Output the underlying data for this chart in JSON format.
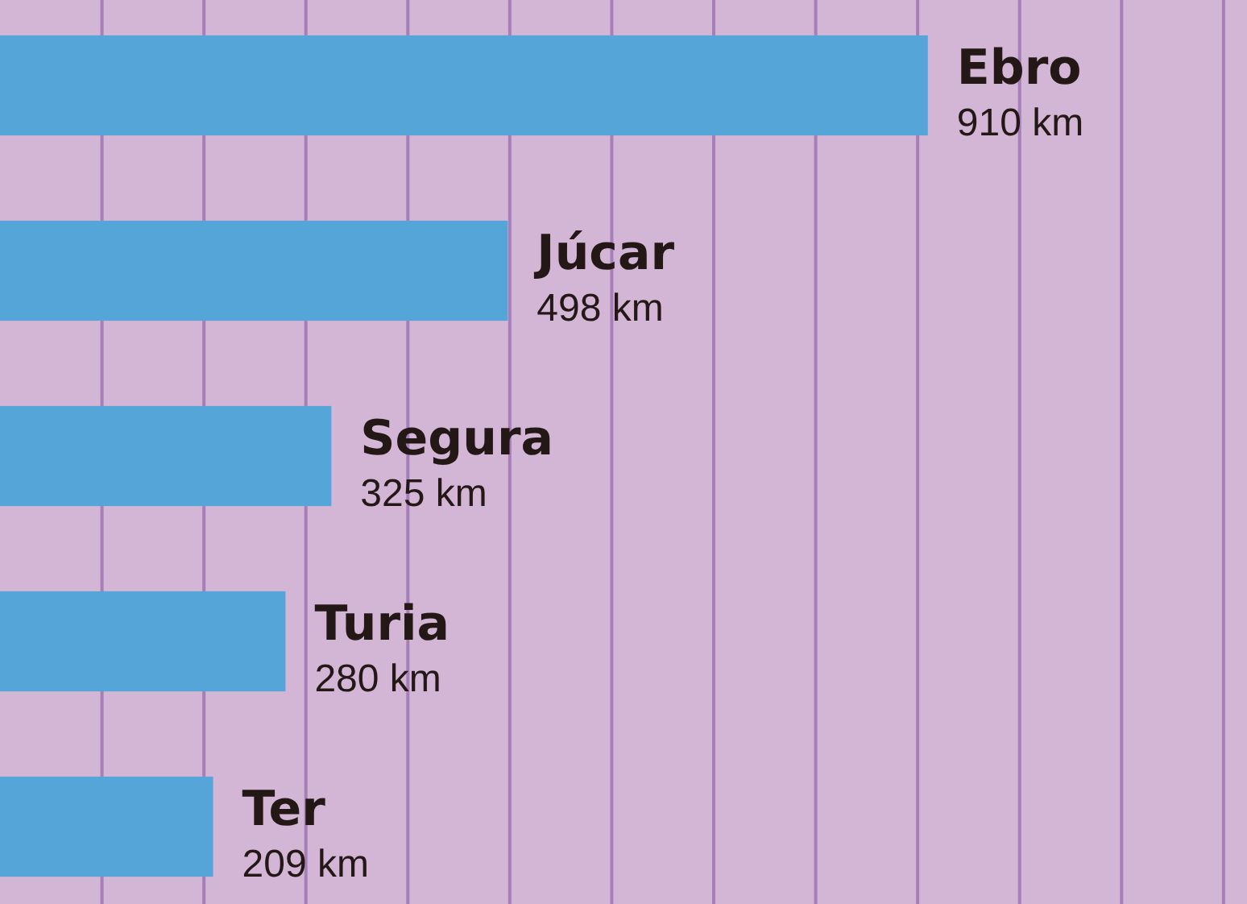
{
  "chart_data": {
    "type": "bar",
    "orientation": "horizontal",
    "categories": [
      "Ebro",
      "Júcar",
      "Segura",
      "Turia",
      "Ter"
    ],
    "values": [
      910,
      498,
      325,
      280,
      209
    ],
    "color": "#56a5d8",
    "value_labels": [
      "910 km",
      "498 km",
      "325 km",
      "280 km",
      "209 km"
    ],
    "xlim": [
      0,
      1223
    ],
    "xticks": [
      {
        "value": 100,
        "label": null
      },
      {
        "value": 200,
        "label": null
      },
      {
        "value": 300,
        "label": null
      },
      {
        "value": 400,
        "label": null
      },
      {
        "value": 500,
        "label": null
      },
      {
        "value": 600,
        "label": null
      },
      {
        "value": 700,
        "label": null
      },
      {
        "value": 800,
        "label": null
      },
      {
        "value": 900,
        "label": null
      },
      {
        "value": 1000,
        "label": null
      },
      {
        "value": 1100,
        "label": null
      },
      {
        "value": 1200,
        "label": null
      }
    ],
    "grid": "x"
  }
}
